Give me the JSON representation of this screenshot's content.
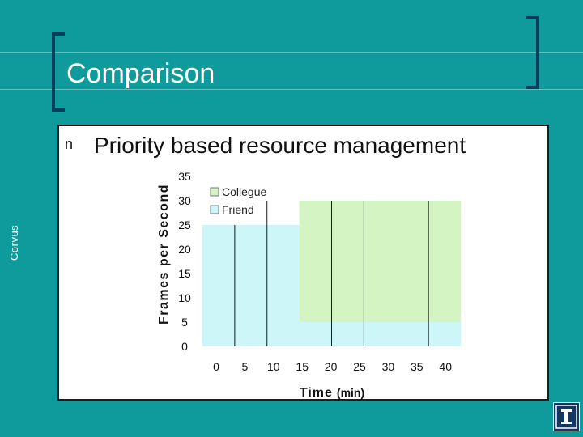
{
  "slide": {
    "title": "Comparison",
    "side_label": "Corvus",
    "bullet_marker": "n",
    "bullet_text": "Priority based resource management",
    "logo_icon": "university-logo-icon"
  },
  "colors": {
    "background": "#0f9b9b",
    "colleague_area": "#d4f4c4",
    "friend_area": "#ccf6f8",
    "bracket": "#0a3d5c"
  },
  "chart_data": {
    "type": "area",
    "ylabel": "Frames per Second",
    "xlabel": "Time",
    "xlabel_unit": "(min)",
    "ylim": [
      0,
      35
    ],
    "xlim": [
      0,
      40
    ],
    "yticks": [
      "0",
      "5",
      "10",
      "15",
      "20",
      "25",
      "30",
      "35"
    ],
    "xticks": [
      "0",
      "5",
      "10",
      "15",
      "20",
      "25",
      "30",
      "35",
      "40"
    ],
    "legend_placement": "top-left",
    "series": [
      {
        "name": "Collegue",
        "color": "#d4f4c4",
        "x": [
          0,
          5,
          5,
          10,
          10,
          15,
          15,
          40
        ],
        "y": [
          0,
          0,
          0,
          0,
          0,
          0,
          30,
          30
        ]
      },
      {
        "name": "Friend",
        "color": "#ccf6f8",
        "x": [
          0,
          5,
          5,
          15,
          15,
          40
        ],
        "y": [
          25,
          25,
          25,
          25,
          5,
          5
        ]
      }
    ],
    "event_lines_x": [
      10,
      20,
      25,
      35
    ]
  }
}
